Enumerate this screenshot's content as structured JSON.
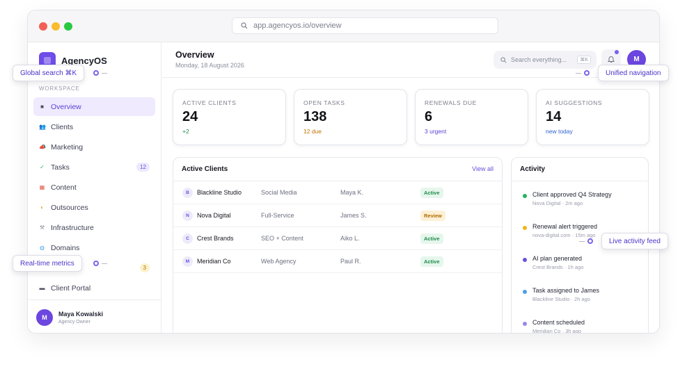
{
  "browser": {
    "url": "app.agencyos.io/overview"
  },
  "sidebar": {
    "brand": "AgencyOS",
    "workspace_label": "WORKSPACE",
    "items": [
      {
        "label": "Overview",
        "icon": "■",
        "icon_color": "#4b4e60",
        "active": true
      },
      {
        "label": "Clients",
        "icon": "👥",
        "icon_color": "#4a8ee6"
      },
      {
        "label": "Marketing",
        "icon": "📣",
        "icon_color": "#e0a12a"
      },
      {
        "label": "Tasks",
        "icon": "✓",
        "icon_color": "#2fb15e",
        "badge": "12"
      },
      {
        "label": "Content",
        "icon": "▦",
        "icon_color": "#e05a4e"
      },
      {
        "label": "Outsources",
        "icon": "◐",
        "icon_color": "#e6a52a"
      },
      {
        "label": "Infrastructure",
        "icon": "⚒",
        "icon_color": "#8a8d9c"
      },
      {
        "label": "Domains",
        "icon": "◍",
        "icon_color": "#4a9fe6"
      },
      {
        "label": "",
        "icon": "",
        "icon_color": "#ffffff",
        "badge": "3"
      },
      {
        "label": "Client Portal",
        "icon": "▬",
        "icon_color": "#4b4e60"
      }
    ],
    "user": {
      "initial": "M",
      "name": "Maya Kowalski",
      "role": "Agency Owner"
    }
  },
  "header": {
    "title": "Overview",
    "date": "Monday, 18 August 2026",
    "search_placeholder": "Search everything...",
    "search_shortcut": "⌘K",
    "avatar_initial": "M"
  },
  "stats": [
    {
      "label": "ACTIVE CLIENTS",
      "value": "24",
      "sub": "+2",
      "sub_color": "#1e8d4b"
    },
    {
      "label": "OPEN TASKS",
      "value": "138",
      "sub": "12 due",
      "sub_color": "#c27000"
    },
    {
      "label": "RENEWALS DUE",
      "value": "6",
      "sub": "3 urgent",
      "sub_color": "#5b3fd6"
    },
    {
      "label": "AI SUGGESTIONS",
      "value": "14",
      "sub": "new today",
      "sub_color": "#2f5fd0"
    }
  ],
  "clients_panel": {
    "title": "Active Clients",
    "view_all": "View all",
    "rows": [
      {
        "initial": "B",
        "name": "Blackline Studio",
        "type": "Social Media",
        "owner": "Maya K.",
        "status": "Active"
      },
      {
        "initial": "N",
        "name": "Nova Digital",
        "type": "Full-Service",
        "owner": "James S.",
        "status": "Review"
      },
      {
        "initial": "C",
        "name": "Crest Brands",
        "type": "SEO + Content",
        "owner": "Aiko L.",
        "status": "Active"
      },
      {
        "initial": "M",
        "name": "Meridian Co",
        "type": "Web Agency",
        "owner": "Paul R.",
        "status": "Active"
      }
    ]
  },
  "activity_panel": {
    "title": "Activity",
    "items": [
      {
        "title": "Client approved Q4 Strategy",
        "meta": "Nova Digital · 2m ago",
        "color": "#22b35b"
      },
      {
        "title": "Renewal alert triggered",
        "meta": "nova-digital.com · 15m ago",
        "color": "#f0b41c"
      },
      {
        "title": "AI plan generated",
        "meta": "Crest Brands · 1h ago",
        "color": "#6a4fe0"
      },
      {
        "title": "Task assigned to James",
        "meta": "Blackline Studio · 2h ago",
        "color": "#4a9fe6"
      },
      {
        "title": "Content scheduled",
        "meta": "Meridian Co · 3h ago",
        "color": "#9a86ea"
      }
    ]
  },
  "callouts": {
    "global_search": "Global search  ⌘K",
    "unified_navigation": "Unified navigation",
    "realtime_metrics": "Real-time metrics",
    "live_activity": "Live activity feed"
  }
}
